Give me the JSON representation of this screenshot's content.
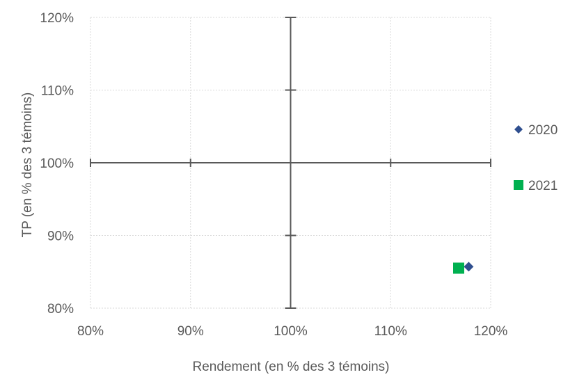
{
  "chart_data": {
    "type": "scatter",
    "title": "",
    "xlabel": "Rendement (en % des 3 témoins)",
    "ylabel": "TP (en % des 3 témoins)",
    "xlim": [
      80,
      120
    ],
    "ylim": [
      80,
      120
    ],
    "x_ticks": [
      80,
      90,
      100,
      110,
      120
    ],
    "y_ticks": [
      80,
      90,
      100,
      110,
      120
    ],
    "x_tick_labels": [
      "80%",
      "90%",
      "100%",
      "110%",
      "120%"
    ],
    "y_tick_labels": [
      "80%",
      "90%",
      "100%",
      "110%",
      "120%"
    ],
    "grid": true,
    "crosshair_at": [
      100,
      100
    ],
    "legend_position": "right",
    "series": [
      {
        "name": "2020",
        "marker": "diamond",
        "color": "#2F4F8F",
        "points": [
          [
            117.8,
            85.7
          ]
        ]
      },
      {
        "name": "2021",
        "marker": "square",
        "color": "#00B050",
        "points": [
          [
            116.8,
            85.5
          ]
        ]
      }
    ]
  }
}
